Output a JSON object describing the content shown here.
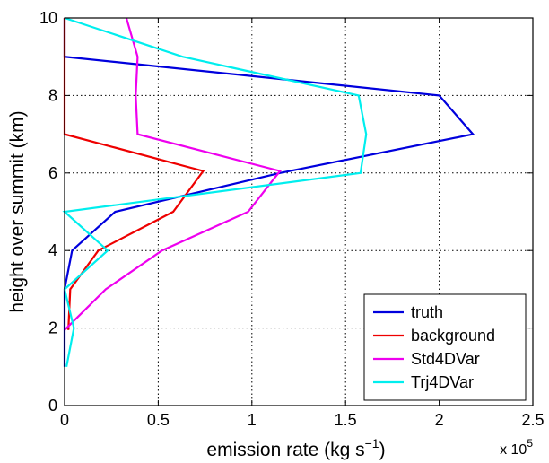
{
  "chart_data": {
    "type": "line",
    "title": "",
    "xlabel": "emission rate (kg s",
    "xlabel_superscript": "−1",
    "xlabel_close": ")",
    "ylabel": "height over summit (km)",
    "x_scale_label": "x 10",
    "x_scale_exponent": "5",
    "xlim": [
      0,
      2.5
    ],
    "ylim": [
      0,
      10
    ],
    "xticks": [
      "0",
      "0.5",
      "1",
      "1.5",
      "2",
      "2.5"
    ],
    "yticks": [
      "0",
      "2",
      "4",
      "6",
      "8",
      "10"
    ],
    "grid": true,
    "legend_position": "bottom-right",
    "series": [
      {
        "name": "truth",
        "color": "#0000dd",
        "points": [
          [
            0,
            1
          ],
          [
            0,
            2
          ],
          [
            0,
            3
          ],
          [
            0.04,
            4
          ],
          [
            0.27,
            5
          ],
          [
            1.15,
            6
          ],
          [
            2.18,
            7
          ],
          [
            2.0,
            8
          ],
          [
            0,
            9
          ],
          [
            0,
            10
          ]
        ]
      },
      {
        "name": "background",
        "color": "#ee0000",
        "points": [
          [
            0.02,
            1.95
          ],
          [
            0.03,
            3
          ],
          [
            0.18,
            4
          ],
          [
            0.58,
            5
          ],
          [
            0.74,
            6.05
          ],
          [
            0,
            7
          ],
          [
            0,
            8
          ],
          [
            0,
            9
          ],
          [
            0,
            10
          ]
        ]
      },
      {
        "name": "Std4DVar",
        "color": "#ee00ee",
        "points": [
          [
            0,
            1.95
          ],
          [
            0.22,
            3
          ],
          [
            0.52,
            4
          ],
          [
            0.98,
            5
          ],
          [
            1.15,
            6.05
          ],
          [
            0.39,
            7
          ],
          [
            0.38,
            8
          ],
          [
            0.39,
            9
          ],
          [
            0.33,
            10
          ]
        ]
      },
      {
        "name": "Trj4DVar",
        "color": "#00eeee",
        "points": [
          [
            0.01,
            1
          ],
          [
            0.05,
            2
          ],
          [
            0,
            3
          ],
          [
            0.23,
            4
          ],
          [
            0,
            5
          ],
          [
            1.58,
            6
          ],
          [
            1.61,
            7
          ],
          [
            1.57,
            8
          ],
          [
            0.63,
            9
          ],
          [
            0,
            10
          ]
        ]
      }
    ]
  }
}
